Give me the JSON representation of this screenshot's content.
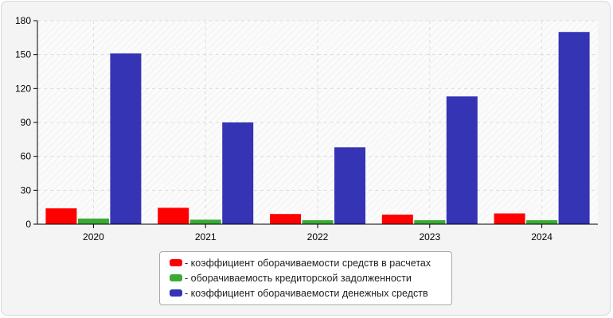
{
  "chart_data": {
    "type": "bar",
    "categories": [
      "2020",
      "2021",
      "2022",
      "2023",
      "2024"
    ],
    "series": [
      {
        "name": "- коэффициент оборачиваемости средств в расчетах",
        "color": "#ff0000",
        "values": [
          14,
          14.5,
          9,
          8.5,
          9.5
        ]
      },
      {
        "name": "- оборачиваемость кредиторской задолженности",
        "color": "#3aaa35",
        "values": [
          5,
          4,
          3.5,
          3.5,
          3.5
        ]
      },
      {
        "name": "- коэффициент оборачиваемости денежных средств",
        "color": "#3434b4",
        "values": [
          151,
          90,
          68,
          113,
          170
        ]
      }
    ],
    "yticks": [
      "0",
      "30",
      "60",
      "90",
      "120",
      "150",
      "180"
    ],
    "ylim": [
      0,
      180
    ],
    "grid": true,
    "legend_position": "bottom-center",
    "title": "",
    "xlabel": "",
    "ylabel": ""
  }
}
